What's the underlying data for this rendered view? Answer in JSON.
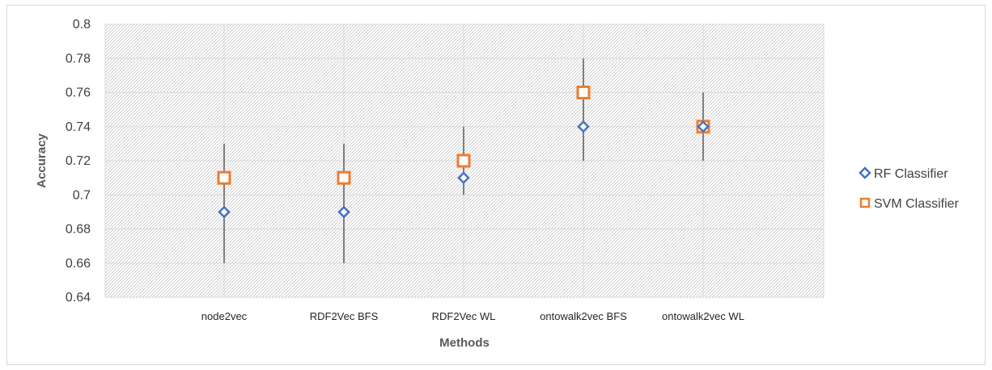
{
  "chart_data": {
    "type": "scatter",
    "title": "",
    "xlabel": "Methods",
    "ylabel": "Accuracy",
    "categories": [
      "node2vec",
      "RDF2Vec BFS",
      "RDF2Vec WL",
      "ontowalk2vec BFS",
      "ontowalk2vec WL"
    ],
    "ylim": [
      0.64,
      0.8
    ],
    "yticks": [
      0.64,
      0.66,
      0.68,
      0.7,
      0.72,
      0.74,
      0.76,
      0.78,
      0.8
    ],
    "ytick_labels": [
      "0.64",
      "0.66",
      "0.68",
      "0.7",
      "0.72",
      "0.74",
      "0.76",
      "0.78",
      "0.8"
    ],
    "grid": true,
    "legend_position": "right",
    "series": [
      {
        "name": "RF Classifier",
        "marker": "diamond",
        "color": "#4472C4",
        "values": [
          0.69,
          0.69,
          0.71,
          0.74,
          0.74
        ],
        "error_low": [
          0.66,
          0.66,
          0.7,
          0.72,
          0.72
        ],
        "error_high": [
          0.73,
          0.73,
          0.74,
          0.78,
          0.76
        ]
      },
      {
        "name": "SVM Classifier",
        "marker": "square",
        "color": "#ED7D31",
        "values": [
          0.71,
          0.71,
          0.72,
          0.76,
          0.74
        ]
      }
    ],
    "errorbar_color": "#7f7f7f"
  }
}
